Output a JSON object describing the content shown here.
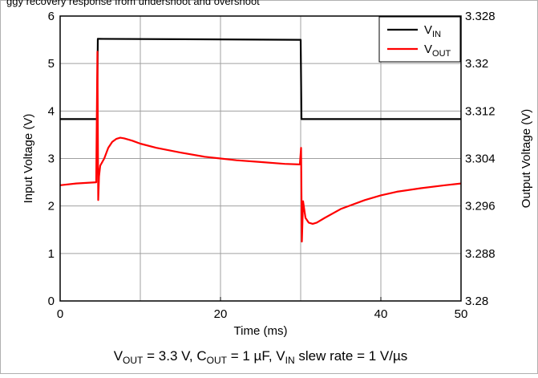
{
  "chart_data": {
    "type": "line",
    "header_text": "ggy recovery response from undershoot and overshoot",
    "caption": {
      "parts": [
        {
          "t": "V"
        },
        {
          "t": "OUT",
          "sub": true
        },
        {
          "t": " = 3.3 V, C"
        },
        {
          "t": "OUT",
          "sub": true
        },
        {
          "t": " = 1 µF, V"
        },
        {
          "t": "IN",
          "sub": true
        },
        {
          "t": " slew rate = 1 V/µs"
        }
      ]
    },
    "xlabel": "Time (ms)",
    "ylabel_left": "Input Voltage (V)",
    "ylabel_right": "Output Voltage (V)",
    "xlim": [
      0,
      50
    ],
    "ylim_left": [
      0,
      6
    ],
    "ylim_right": [
      3.28,
      3.328
    ],
    "x_ticks": [
      "0",
      "20",
      "40",
      "50"
    ],
    "x_tick_values": [
      0,
      20,
      40,
      50
    ],
    "x_grid": [
      0,
      10,
      20,
      30,
      40,
      50
    ],
    "y_ticks_left": [
      "0",
      "1",
      "2",
      "3",
      "4",
      "5",
      "6"
    ],
    "y_ticks_right": [
      "3.28",
      "3.288",
      "3.296",
      "3.304",
      "3.312",
      "3.32",
      "3.328"
    ],
    "grid": true,
    "legend": {
      "position": "top-right"
    },
    "series": [
      {
        "name": "VIN",
        "legend_main": "V",
        "legend_sub": "IN",
        "axis": "left",
        "color": "#000000",
        "x": [
          0,
          4.6,
          4.7,
          30.0,
          30.1,
          50
        ],
        "y": [
          3.83,
          3.83,
          5.52,
          5.5,
          3.83,
          3.83
        ]
      },
      {
        "name": "VOUT",
        "legend_main": "V",
        "legend_sub": "OUT",
        "axis": "right",
        "color": "#ff0000",
        "x": [
          0,
          2,
          4.5,
          4.65,
          4.75,
          4.85,
          5.0,
          5.5,
          6.0,
          6.5,
          7.0,
          7.5,
          8.0,
          9.0,
          10,
          12,
          15,
          18,
          20,
          22,
          25,
          28,
          29.9,
          30.05,
          30.15,
          30.3,
          30.6,
          31.0,
          31.5,
          32,
          33,
          35,
          38,
          40,
          42,
          45,
          48,
          50
        ],
        "y": [
          3.2995,
          3.2998,
          3.3,
          3.322,
          3.297,
          3.301,
          3.3028,
          3.304,
          3.3058,
          3.3068,
          3.3073,
          3.3075,
          3.3074,
          3.307,
          3.3065,
          3.3058,
          3.305,
          3.3043,
          3.304,
          3.3037,
          3.3034,
          3.3031,
          3.303,
          3.3058,
          3.29,
          3.2968,
          3.294,
          3.2932,
          3.293,
          3.2932,
          3.294,
          3.2955,
          3.297,
          3.2978,
          3.2984,
          3.299,
          3.2995,
          3.2998
        ]
      }
    ]
  }
}
